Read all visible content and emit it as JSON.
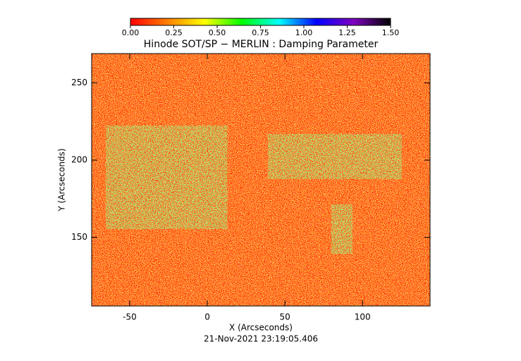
{
  "chart_data": {
    "type": "heatmap",
    "title": "Hinode SOT/SP − MERLIN : Damping Parameter",
    "subtitle": "21-Nov-2021 23:19:05.406",
    "xlabel": "X (Arcseconds)",
    "ylabel": "Y (Arcseconds)",
    "xlim": [
      -74.5,
      143.5
    ],
    "ylim": [
      105.5,
      269
    ],
    "xticks": [
      -50,
      0,
      50,
      100
    ],
    "yticks": [
      150,
      200,
      250
    ],
    "colorbar": {
      "lim": [
        0,
        1.5
      ],
      "ticks": [
        {
          "value": 0,
          "label": "0.00"
        },
        {
          "value": 0.25,
          "label": "0.25"
        },
        {
          "value": 0.5,
          "label": "0.50"
        },
        {
          "value": 0.75,
          "label": "0.75"
        },
        {
          "value": 1,
          "label": "1.00"
        },
        {
          "value": 1.25,
          "label": "1.25"
        },
        {
          "value": 1.5,
          "label": "1.50"
        }
      ],
      "colors": [
        "#ff0000",
        "#ff8000",
        "#ffff00",
        "#00ff00",
        "#00ffff",
        "#0000ff",
        "#8000c0",
        "#000000"
      ]
    }
  }
}
